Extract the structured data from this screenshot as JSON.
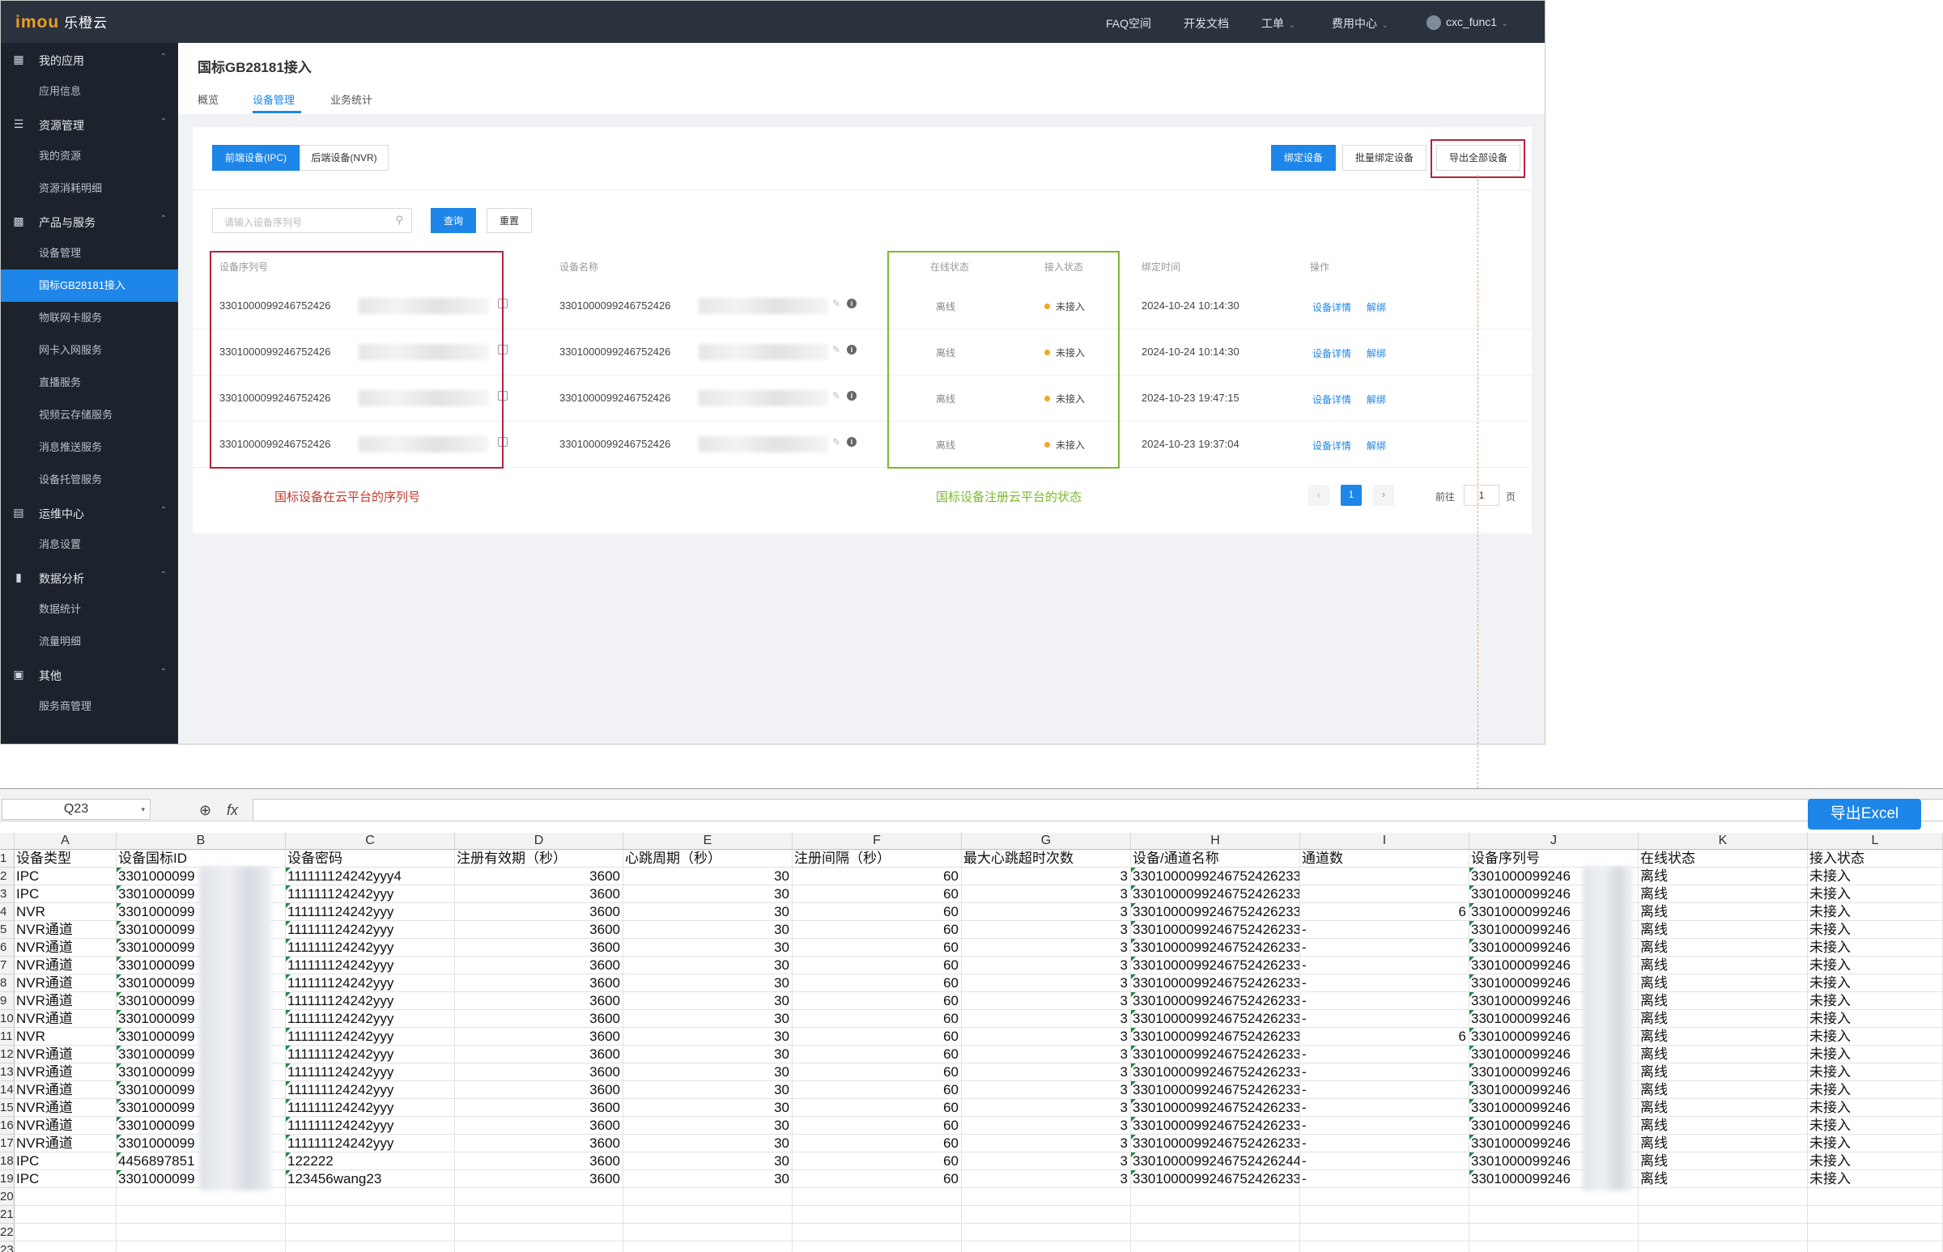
{
  "topbar": {
    "logo": "imou",
    "brand": "乐橙云",
    "nav": [
      "FAQ空间",
      "开发文档",
      "工单",
      "费用中心"
    ],
    "user": "cxc_func1"
  },
  "sidebar": {
    "groups": [
      {
        "label": "我的应用",
        "icon": "grid-icon",
        "items": [
          "应用信息"
        ]
      },
      {
        "label": "资源管理",
        "icon": "layers-icon",
        "items": [
          "我的资源",
          "资源消耗明细"
        ]
      },
      {
        "label": "产品与服务",
        "icon": "camera-icon",
        "items": [
          "设备管理",
          "国标GB28181接入",
          "物联网卡服务",
          "网卡入网服务",
          "直播服务",
          "视频云存储服务",
          "消息推送服务",
          "设备托管服务"
        ]
      },
      {
        "label": "运维中心",
        "icon": "report-icon",
        "items": [
          "消息设置"
        ]
      },
      {
        "label": "数据分析",
        "icon": "bar-chart-icon",
        "items": [
          "数据统计",
          "流量明细"
        ]
      },
      {
        "label": "其他",
        "icon": "book-icon",
        "items": [
          "服务商管理"
        ]
      }
    ],
    "active": "国标GB28181接入"
  },
  "page": {
    "title": "国标GB28181接入",
    "tabs": [
      "概览",
      "设备管理",
      "业务统计"
    ],
    "active_tab": "设备管理"
  },
  "toolbar": {
    "seg_ipc": "前端设备(IPC)",
    "seg_nvr": "后端设备(NVR)",
    "bind": "绑定设备",
    "batch_bind": "批量绑定设备",
    "export_all": "导出全部设备"
  },
  "filter": {
    "placeholder": "请输入设备序列号",
    "query": "查询",
    "reset": "重置"
  },
  "table": {
    "headers": [
      "设备序列号",
      "设备名称",
      "在线状态",
      "接入状态",
      "绑定时间",
      "操作"
    ],
    "rows": [
      {
        "serial": "3301000099246752426",
        "name": "3301000099246752426",
        "online": "离线",
        "access": "未接入",
        "time": "2024-10-24 10:14:30"
      },
      {
        "serial": "3301000099246752426",
        "name": "3301000099246752426",
        "online": "离线",
        "access": "未接入",
        "time": "2024-10-24 10:14:30"
      },
      {
        "serial": "3301000099246752426",
        "name": "3301000099246752426",
        "online": "离线",
        "access": "未接入",
        "time": "2024-10-23 19:47:15"
      },
      {
        "serial": "3301000099246752426",
        "name": "3301000099246752426",
        "online": "离线",
        "access": "未接入",
        "time": "2024-10-23 19:37:04"
      }
    ],
    "op_detail": "设备详情",
    "op_unbind": "解绑"
  },
  "annotations": {
    "red": "国标设备在云平台的序列号",
    "green": "国标设备注册云平台的状态"
  },
  "pagination": {
    "current": "1",
    "goto_label": "前往",
    "goto_value": "1",
    "page_unit": "页"
  },
  "spreadsheet": {
    "name_box": "Q23",
    "fx": "fx",
    "export_button": "导出Excel",
    "columns": [
      "A",
      "B",
      "C",
      "D",
      "E",
      "F",
      "G",
      "H",
      "I",
      "J",
      "K",
      "L"
    ],
    "header_row": [
      "设备类型",
      "设备国标ID",
      "设备密码",
      "注册有效期（秒）",
      "心跳周期（秒）",
      "注册间隔（秒）",
      "最大心跳超时次数",
      "设备/通道名称",
      "通道数",
      "设备序列号",
      "在线状态",
      "接入状态"
    ],
    "rows": [
      [
        "IPC",
        "3301000099",
        "111111124242yyy4",
        "3600",
        "30",
        "60",
        "3",
        "3301000099246752426233",
        "",
        "3301000099246",
        "离线",
        "未接入"
      ],
      [
        "IPC",
        "3301000099",
        "111111124242yyy",
        "3600",
        "30",
        "60",
        "3",
        "3301000099246752426233",
        "",
        "3301000099246",
        "离线",
        "未接入"
      ],
      [
        "NVR",
        "3301000099",
        "111111124242yyy",
        "3600",
        "30",
        "60",
        "3",
        "3301000099246752426233",
        "6",
        "3301000099246",
        "离线",
        "未接入"
      ],
      [
        "NVR通道",
        "3301000099",
        "111111124242yyy",
        "3600",
        "30",
        "60",
        "3",
        "3301000099246752426233",
        "-",
        "3301000099246",
        "离线",
        "未接入"
      ],
      [
        "NVR通道",
        "3301000099",
        "111111124242yyy",
        "3600",
        "30",
        "60",
        "3",
        "3301000099246752426233",
        "-",
        "3301000099246",
        "离线",
        "未接入"
      ],
      [
        "NVR通道",
        "3301000099",
        "111111124242yyy",
        "3600",
        "30",
        "60",
        "3",
        "3301000099246752426233",
        "-",
        "3301000099246",
        "离线",
        "未接入"
      ],
      [
        "NVR通道",
        "3301000099",
        "111111124242yyy",
        "3600",
        "30",
        "60",
        "3",
        "3301000099246752426233",
        "-",
        "3301000099246",
        "离线",
        "未接入"
      ],
      [
        "NVR通道",
        "3301000099",
        "111111124242yyy",
        "3600",
        "30",
        "60",
        "3",
        "3301000099246752426233",
        "-",
        "3301000099246",
        "离线",
        "未接入"
      ],
      [
        "NVR通道",
        "3301000099",
        "111111124242yyy",
        "3600",
        "30",
        "60",
        "3",
        "3301000099246752426233",
        "-",
        "3301000099246",
        "离线",
        "未接入"
      ],
      [
        "NVR",
        "3301000099",
        "111111124242yyy",
        "3600",
        "30",
        "60",
        "3",
        "3301000099246752426233",
        "6",
        "3301000099246",
        "离线",
        "未接入"
      ],
      [
        "NVR通道",
        "3301000099",
        "111111124242yyy",
        "3600",
        "30",
        "60",
        "3",
        "3301000099246752426233",
        "-",
        "3301000099246",
        "离线",
        "未接入"
      ],
      [
        "NVR通道",
        "3301000099",
        "111111124242yyy",
        "3600",
        "30",
        "60",
        "3",
        "3301000099246752426233",
        "-",
        "3301000099246",
        "离线",
        "未接入"
      ],
      [
        "NVR通道",
        "3301000099",
        "111111124242yyy",
        "3600",
        "30",
        "60",
        "3",
        "3301000099246752426233",
        "-",
        "3301000099246",
        "离线",
        "未接入"
      ],
      [
        "NVR通道",
        "3301000099",
        "111111124242yyy",
        "3600",
        "30",
        "60",
        "3",
        "3301000099246752426233",
        "-",
        "3301000099246",
        "离线",
        "未接入"
      ],
      [
        "NVR通道",
        "3301000099",
        "111111124242yyy",
        "3600",
        "30",
        "60",
        "3",
        "3301000099246752426233",
        "-",
        "3301000099246",
        "离线",
        "未接入"
      ],
      [
        "NVR通道",
        "3301000099",
        "111111124242yyy",
        "3600",
        "30",
        "60",
        "3",
        "3301000099246752426233",
        "-",
        "3301000099246",
        "离线",
        "未接入"
      ],
      [
        "IPC",
        "4456897851",
        "122222",
        "3600",
        "30",
        "60",
        "3",
        "3301000099246752426244",
        "-",
        "3301000099246",
        "离线",
        "未接入"
      ],
      [
        "IPC",
        "3301000099",
        "123456wang23",
        "3600",
        "30",
        "60",
        "3",
        "3301000099246752426233",
        "-",
        "3301000099246",
        "离线",
        "未接入"
      ]
    ]
  },
  "colors": {
    "primary": "#1d86e8",
    "topbar": "#29323d",
    "sidebar": "#1c232c",
    "red": "#b4233b",
    "green": "#7cb82f"
  }
}
